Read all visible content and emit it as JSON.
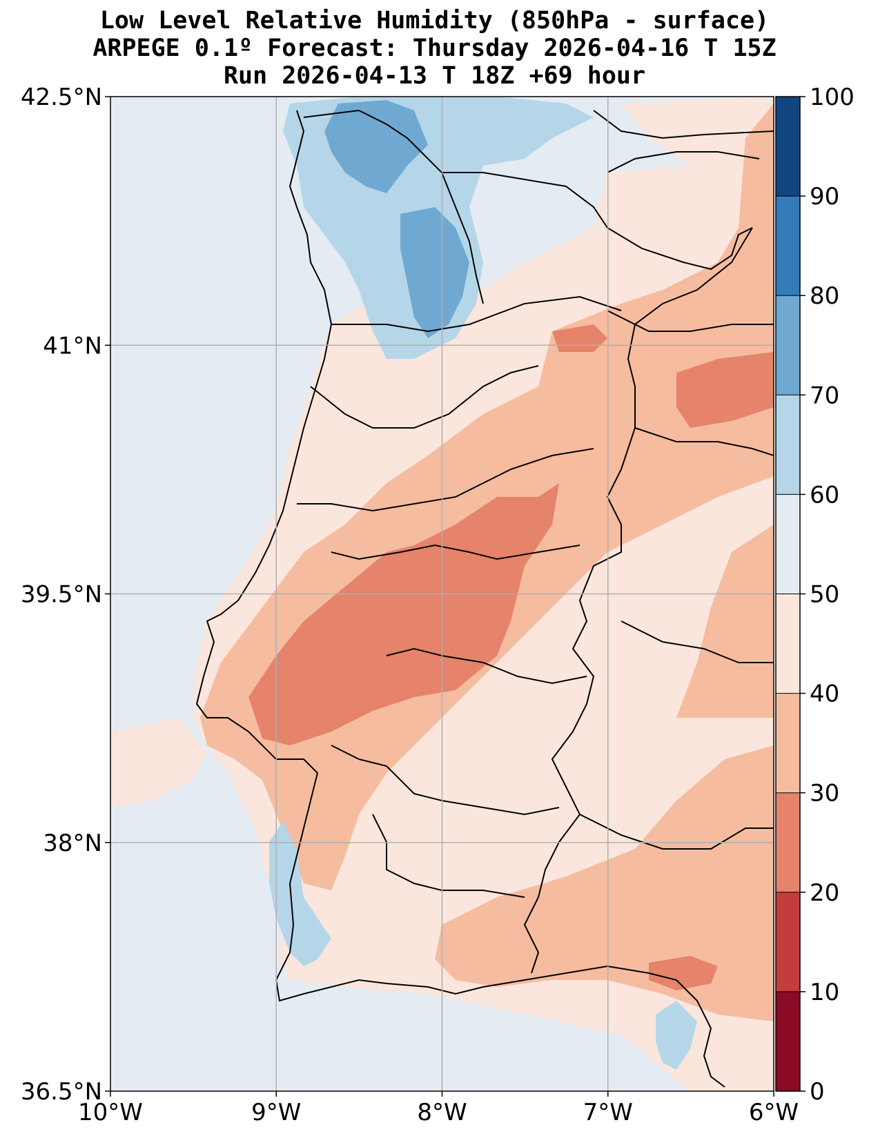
{
  "title": {
    "line1": "Low Level Relative Humidity (850hPa - surface)",
    "line2": "ARPEGE 0.1º Forecast: Thursday 2026-04-16 T 15Z",
    "line3": "Run 2026-04-13 T 18Z +69 hour"
  },
  "map": {
    "lon_range": [
      -10,
      -6
    ],
    "lat_range": [
      36.5,
      42.5
    ],
    "lon_ticks": [
      {
        "value": -10,
        "label": "10°W"
      },
      {
        "value": -9,
        "label": "9°W"
      },
      {
        "value": -8,
        "label": "8°W"
      },
      {
        "value": -7,
        "label": "7°W"
      },
      {
        "value": -6,
        "label": "6°W"
      }
    ],
    "lat_ticks": [
      {
        "value": 42.5,
        "label": "42.5°N"
      },
      {
        "value": 41,
        "label": "41°N"
      },
      {
        "value": 39.5,
        "label": "39.5°N"
      },
      {
        "value": 38,
        "label": "38°N"
      },
      {
        "value": 36.5,
        "label": "36.5°N"
      }
    ],
    "grid": true
  },
  "colorbar": {
    "levels": [
      0,
      10,
      20,
      30,
      40,
      50,
      60,
      70,
      80,
      90,
      100
    ],
    "labels": [
      "0",
      "10",
      "20",
      "30",
      "40",
      "50",
      "60",
      "70",
      "80",
      "90",
      "100"
    ],
    "colors": [
      "#8b0a26",
      "#c43d3d",
      "#e6836b",
      "#f5bca0",
      "#fae6dc",
      "#e4ebf3",
      "#b5d6e8",
      "#6fa9d2",
      "#347cb8",
      "#11457f"
    ]
  },
  "colors": {
    "background": "#e4ebf3",
    "border": "#000000",
    "grid": "#b0b0b0"
  }
}
